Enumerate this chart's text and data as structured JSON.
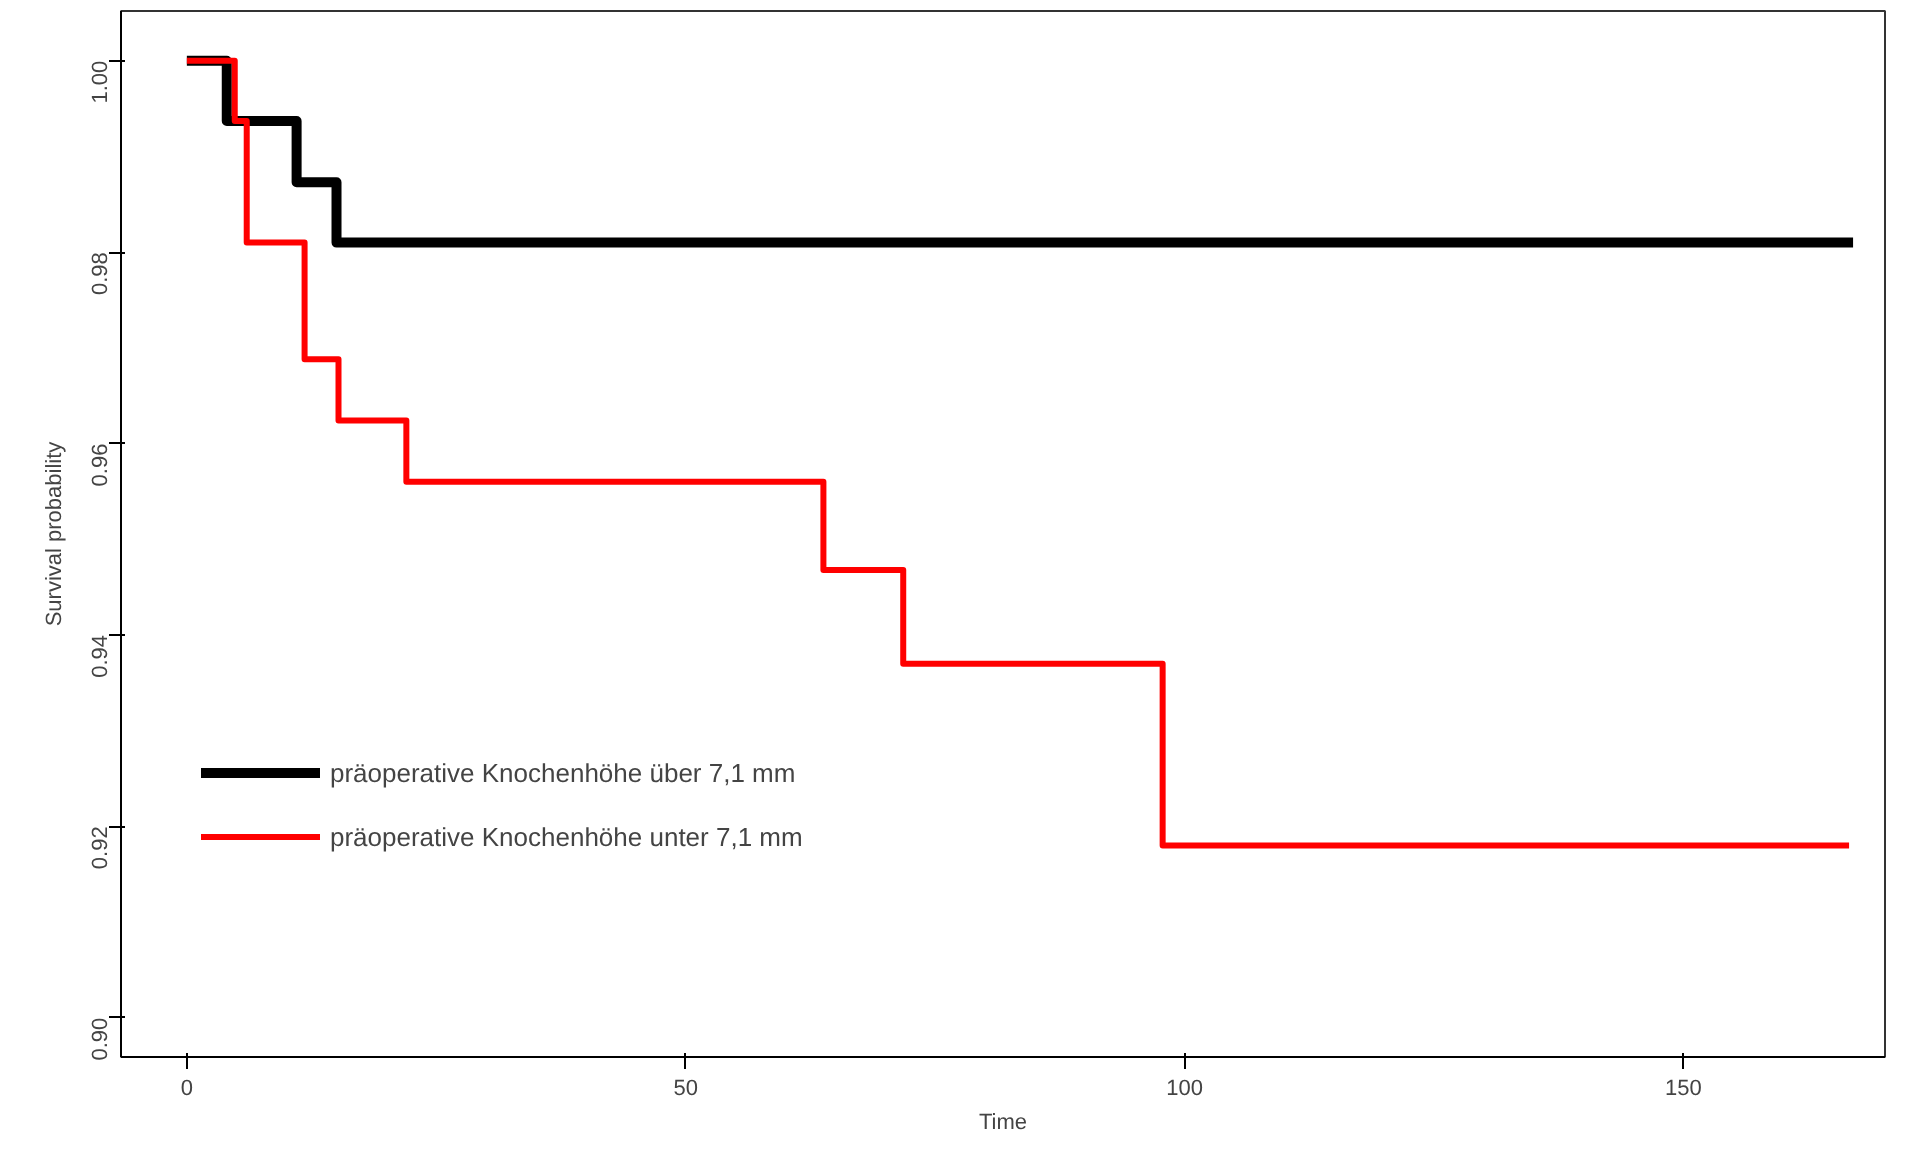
{
  "chart_data": {
    "type": "step",
    "xlabel": "Time",
    "ylabel": "Survival probability",
    "xlim": [
      -6.6,
      170.2
    ],
    "ylim": [
      0.8959,
      1.0052
    ],
    "xticks": [
      0,
      50,
      100,
      150
    ],
    "yticks": [
      {
        "value": 0.9,
        "label": "0.90"
      },
      {
        "value": 0.92,
        "label": "0.92"
      },
      {
        "value": 0.94,
        "label": "0.94"
      },
      {
        "value": 0.96,
        "label": "0.96"
      },
      {
        "value": 0.98,
        "label": "0.98"
      },
      {
        "value": 1.0,
        "label": "1.00"
      }
    ],
    "grid": false,
    "legend": "left",
    "line_style": "solid",
    "series": [
      {
        "name": "präoperative Knochenhöhe über 7,1 mm",
        "color": "#000000",
        "x": [
          0,
          4,
          11,
          15,
          167
        ],
        "values": [
          1.0,
          0.9937,
          0.9873,
          0.981,
          0.981
        ]
      },
      {
        "name": "präoperative Knochenhöhe unter 7,1 mm",
        "color": "#ff0000",
        "x": [
          0,
          4.8,
          6,
          11.8,
          15.2,
          22,
          63.8,
          71.8,
          97.8,
          166.6
        ],
        "values": [
          1.0,
          0.9937,
          0.981,
          0.9688,
          0.9624,
          0.956,
          0.9468,
          0.937,
          0.918,
          0.918
        ]
      }
    ]
  }
}
